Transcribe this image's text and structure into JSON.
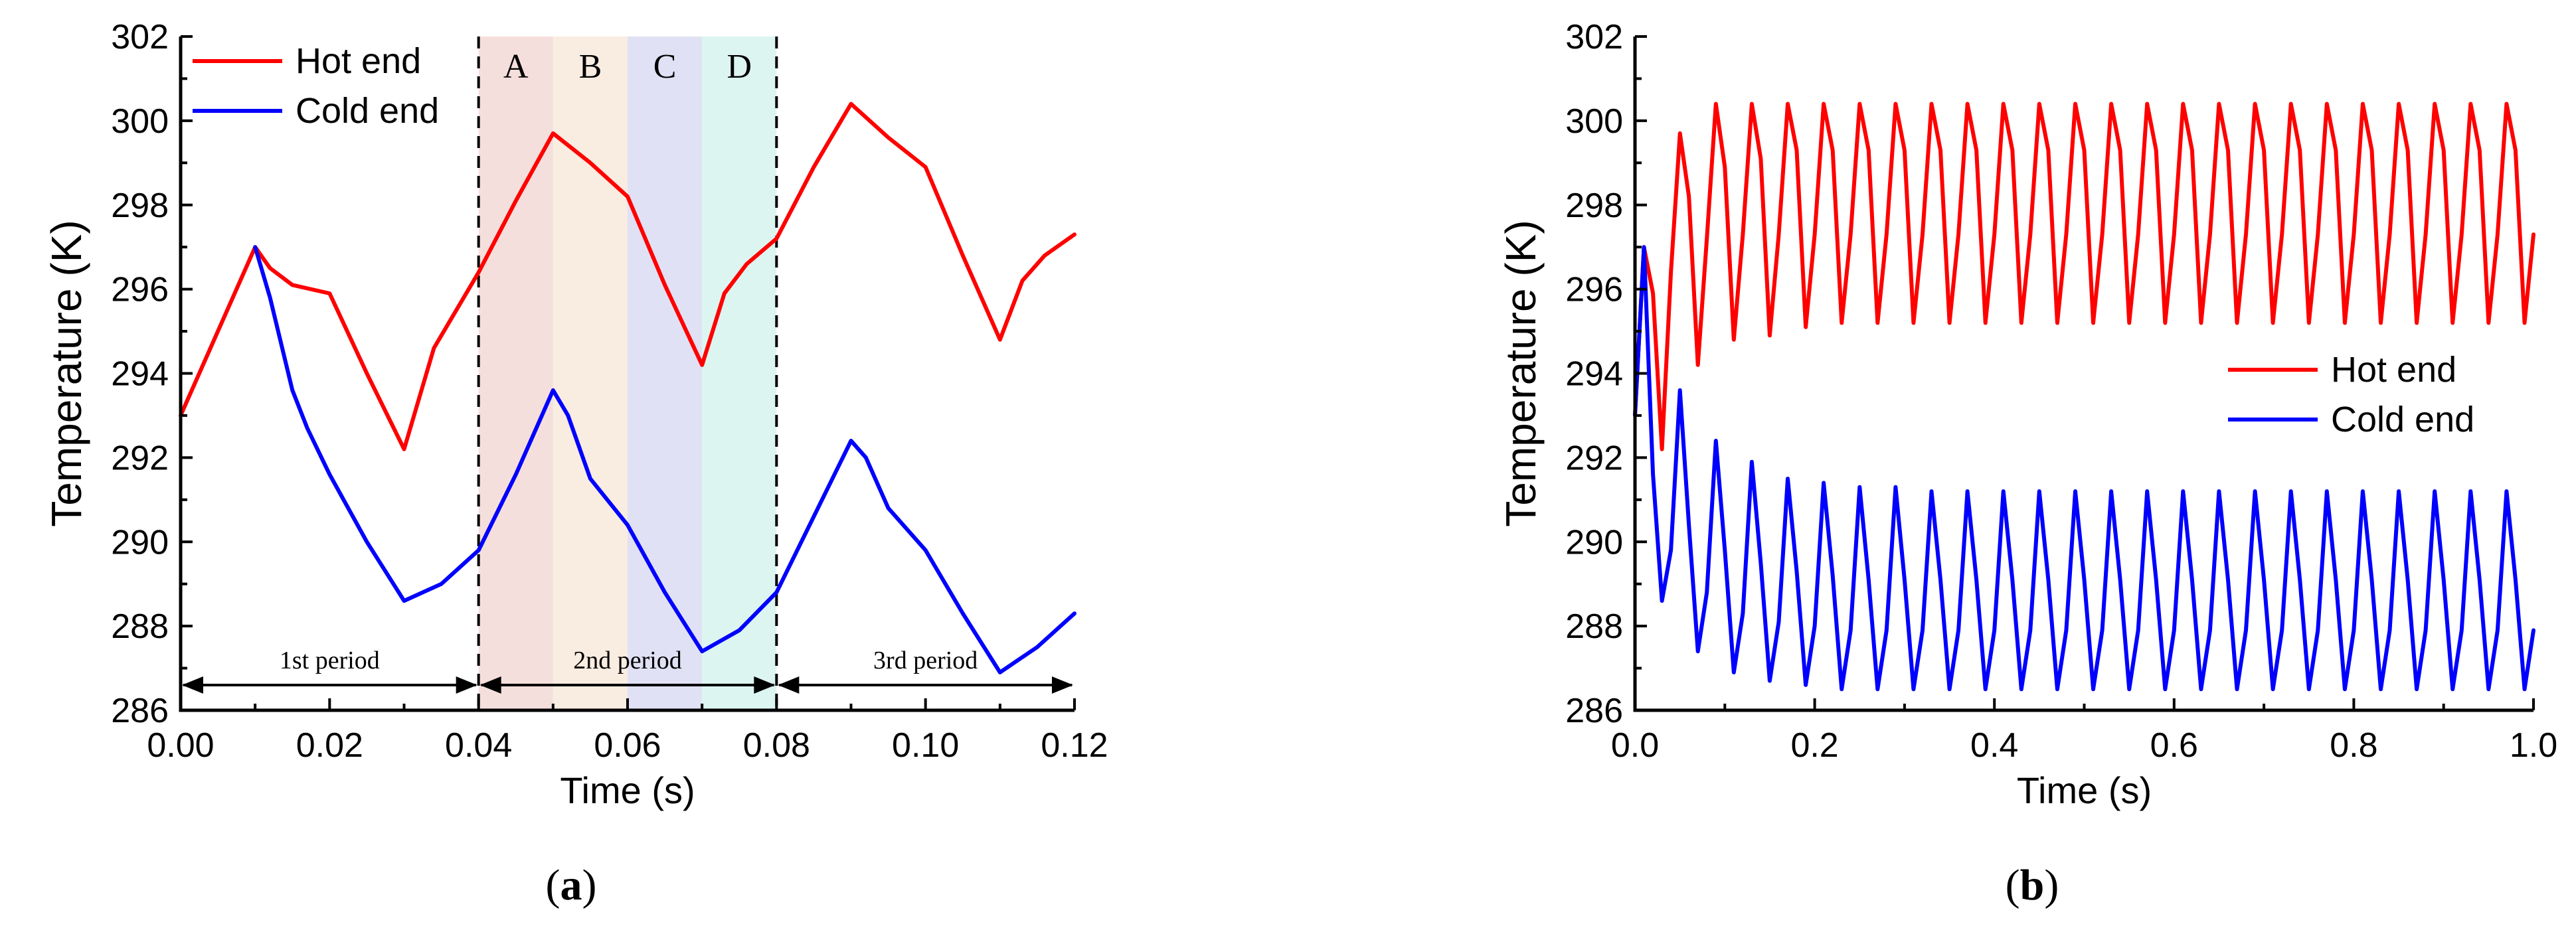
{
  "colors": {
    "hot": "#ff0000",
    "cold": "#0000ff"
  },
  "chart_data": [
    {
      "type": "line",
      "caption_letter": "a",
      "xlabel": "Time (s)",
      "ylabel": "Temperature (K)",
      "xlim": [
        0,
        0.12
      ],
      "ylim": [
        286,
        302
      ],
      "xticks": [
        "0.00",
        "0.02",
        "0.04",
        "0.06",
        "0.08",
        "0.10",
        "0.12"
      ],
      "yticks": [
        "286",
        "288",
        "290",
        "292",
        "294",
        "296",
        "298",
        "300",
        "302"
      ],
      "legend_position": "top-left",
      "phases": [
        {
          "label": "A",
          "x0": 0.04,
          "x1": 0.05,
          "color": "#f3d9d6"
        },
        {
          "label": "B",
          "x0": 0.05,
          "x1": 0.06,
          "color": "#f8e9db"
        },
        {
          "label": "C",
          "x0": 0.06,
          "x1": 0.07,
          "color": "#dcdcf3"
        },
        {
          "label": "D",
          "x0": 0.07,
          "x1": 0.08,
          "color": "#d6f3ef"
        }
      ],
      "boundaries": [
        0.04,
        0.08
      ],
      "periods": [
        {
          "label": "1st period",
          "x0": 0.0,
          "x1": 0.04
        },
        {
          "label": "2nd period",
          "x0": 0.04,
          "x1": 0.08
        },
        {
          "label": "3rd period",
          "x0": 0.08,
          "x1": 0.12
        }
      ],
      "series": [
        {
          "name": "Hot end",
          "color": "#ff0000",
          "x": [
            0,
            0.01,
            0.012,
            0.015,
            0.02,
            0.025,
            0.03,
            0.034,
            0.04,
            0.045,
            0.05,
            0.055,
            0.06,
            0.065,
            0.07,
            0.073,
            0.076,
            0.08,
            0.085,
            0.09,
            0.095,
            0.1,
            0.105,
            0.11,
            0.113,
            0.116,
            0.12
          ],
          "values": [
            293.0,
            297.0,
            296.5,
            296.1,
            295.9,
            294.0,
            292.2,
            294.6,
            296.4,
            298.1,
            299.7,
            299.0,
            298.2,
            296.1,
            294.2,
            295.9,
            296.6,
            297.2,
            298.9,
            300.4,
            299.6,
            298.9,
            296.8,
            294.8,
            296.2,
            296.8,
            297.3
          ]
        },
        {
          "name": "Cold end",
          "color": "#0000ff",
          "x": [
            0.01,
            0.012,
            0.015,
            0.017,
            0.02,
            0.025,
            0.03,
            0.035,
            0.04,
            0.045,
            0.05,
            0.052,
            0.055,
            0.06,
            0.065,
            0.07,
            0.075,
            0.08,
            0.085,
            0.09,
            0.092,
            0.095,
            0.1,
            0.105,
            0.11,
            0.115,
            0.12
          ],
          "values": [
            297.0,
            295.8,
            293.6,
            292.7,
            291.6,
            290.0,
            288.6,
            289.0,
            289.8,
            291.6,
            293.6,
            293.0,
            291.5,
            290.4,
            288.8,
            287.4,
            287.9,
            288.8,
            290.6,
            292.4,
            292.0,
            290.8,
            289.8,
            288.3,
            286.9,
            287.5,
            288.3
          ]
        }
      ]
    },
    {
      "type": "line",
      "caption_letter": "b",
      "xlabel": "Time (s)",
      "ylabel": "Temperature (K)",
      "xlim": [
        0,
        1.0
      ],
      "ylim": [
        286,
        302
      ],
      "xticks": [
        "0.0",
        "0.2",
        "0.4",
        "0.6",
        "0.8",
        "1.0"
      ],
      "yticks": [
        "286",
        "288",
        "290",
        "292",
        "294",
        "296",
        "298",
        "300",
        "302"
      ],
      "legend_position": "middle-right",
      "series": [
        {
          "name": "Hot end",
          "color": "#ff0000",
          "x": [
            0,
            0.01,
            0.02,
            0.03,
            0.04,
            0.05,
            0.06,
            0.07,
            0.08,
            0.09,
            0.1,
            0.11,
            0.12,
            0.13,
            0.14,
            0.15,
            0.16,
            0.17,
            0.18,
            0.19,
            0.2,
            0.21,
            0.22,
            0.23,
            0.24,
            0.25,
            0.26,
            0.27,
            0.28,
            0.29,
            0.3,
            0.31,
            0.32,
            0.33,
            0.34,
            0.35,
            0.36,
            0.37,
            0.38,
            0.39,
            0.4,
            0.41,
            0.42,
            0.43,
            0.44,
            0.45,
            0.46,
            0.47,
            0.48,
            0.49,
            0.5,
            0.51,
            0.52,
            0.53,
            0.54,
            0.55,
            0.56,
            0.57,
            0.58,
            0.59,
            0.6,
            0.61,
            0.62,
            0.63,
            0.64,
            0.65,
            0.66,
            0.67,
            0.68,
            0.69,
            0.7,
            0.71,
            0.72,
            0.73,
            0.74,
            0.75,
            0.76,
            0.77,
            0.78,
            0.79,
            0.8,
            0.81,
            0.82,
            0.83,
            0.84,
            0.85,
            0.86,
            0.87,
            0.88,
            0.89,
            0.9,
            0.91,
            0.92,
            0.93,
            0.94,
            0.95,
            0.96,
            0.97,
            0.98,
            0.99,
            1.0
          ],
          "values": [
            293.0,
            297.0,
            295.9,
            292.2,
            296.4,
            299.7,
            298.2,
            294.2,
            297.2,
            300.4,
            298.9,
            294.8,
            297.3,
            300.4,
            299.1,
            294.9,
            297.3,
            300.4,
            299.3,
            295.1,
            297.3,
            300.4,
            299.3,
            295.2,
            297.3,
            300.4,
            299.3,
            295.2,
            297.3,
            300.4,
            299.3,
            295.2,
            297.3,
            300.4,
            299.3,
            295.2,
            297.3,
            300.4,
            299.3,
            295.2,
            297.3,
            300.4,
            299.3,
            295.2,
            297.3,
            300.4,
            299.3,
            295.2,
            297.3,
            300.4,
            299.3,
            295.2,
            297.3,
            300.4,
            299.3,
            295.2,
            297.3,
            300.4,
            299.3,
            295.2,
            297.3,
            300.4,
            299.3,
            295.2,
            297.3,
            300.4,
            299.3,
            295.2,
            297.3,
            300.4,
            299.3,
            295.2,
            297.3,
            300.4,
            299.3,
            295.2,
            297.3,
            300.4,
            299.3,
            295.2,
            297.3,
            300.4,
            299.3,
            295.2,
            297.3,
            300.4,
            299.3,
            295.2,
            297.3,
            300.4,
            299.3,
            295.2,
            297.3,
            300.4,
            299.3,
            295.2,
            297.3,
            300.4,
            299.3,
            295.2,
            297.3
          ]
        },
        {
          "name": "Cold end",
          "color": "#0000ff",
          "x": [
            0,
            0.01,
            0.02,
            0.03,
            0.04,
            0.05,
            0.06,
            0.07,
            0.08,
            0.09,
            0.1,
            0.11,
            0.12,
            0.13,
            0.14,
            0.15,
            0.16,
            0.17,
            0.18,
            0.19,
            0.2,
            0.21,
            0.22,
            0.23,
            0.24,
            0.25,
            0.26,
            0.27,
            0.28,
            0.29,
            0.3,
            0.31,
            0.32,
            0.33,
            0.34,
            0.35,
            0.36,
            0.37,
            0.38,
            0.39,
            0.4,
            0.41,
            0.42,
            0.43,
            0.44,
            0.45,
            0.46,
            0.47,
            0.48,
            0.49,
            0.5,
            0.51,
            0.52,
            0.53,
            0.54,
            0.55,
            0.56,
            0.57,
            0.58,
            0.59,
            0.6,
            0.61,
            0.62,
            0.63,
            0.64,
            0.65,
            0.66,
            0.67,
            0.68,
            0.69,
            0.7,
            0.71,
            0.72,
            0.73,
            0.74,
            0.75,
            0.76,
            0.77,
            0.78,
            0.79,
            0.8,
            0.81,
            0.82,
            0.83,
            0.84,
            0.85,
            0.86,
            0.87,
            0.88,
            0.89,
            0.9,
            0.91,
            0.92,
            0.93,
            0.94,
            0.95,
            0.96,
            0.97,
            0.98,
            0.99,
            1.0
          ],
          "values": [
            293.0,
            297.0,
            291.6,
            288.6,
            289.8,
            293.6,
            290.4,
            287.4,
            288.8,
            292.4,
            289.8,
            286.9,
            288.3,
            291.9,
            289.5,
            286.7,
            288.1,
            291.5,
            289.3,
            286.6,
            288.0,
            291.4,
            289.2,
            286.5,
            287.9,
            291.3,
            289.1,
            286.5,
            287.9,
            291.3,
            289.1,
            286.5,
            287.9,
            291.2,
            289.1,
            286.5,
            287.9,
            291.2,
            289.1,
            286.5,
            287.9,
            291.2,
            289.1,
            286.5,
            287.9,
            291.2,
            289.1,
            286.5,
            287.9,
            291.2,
            289.1,
            286.5,
            287.9,
            291.2,
            289.1,
            286.5,
            287.9,
            291.2,
            289.1,
            286.5,
            287.9,
            291.2,
            289.1,
            286.5,
            287.9,
            291.2,
            289.1,
            286.5,
            287.9,
            291.2,
            289.1,
            286.5,
            287.9,
            291.2,
            289.1,
            286.5,
            287.9,
            291.2,
            289.1,
            286.5,
            287.9,
            291.2,
            289.1,
            286.5,
            287.9,
            291.2,
            289.1,
            286.5,
            287.9,
            291.2,
            289.1,
            286.5,
            287.9,
            291.2,
            289.1,
            286.5,
            287.9,
            291.2,
            289.1,
            286.5,
            287.9
          ]
        }
      ]
    }
  ]
}
